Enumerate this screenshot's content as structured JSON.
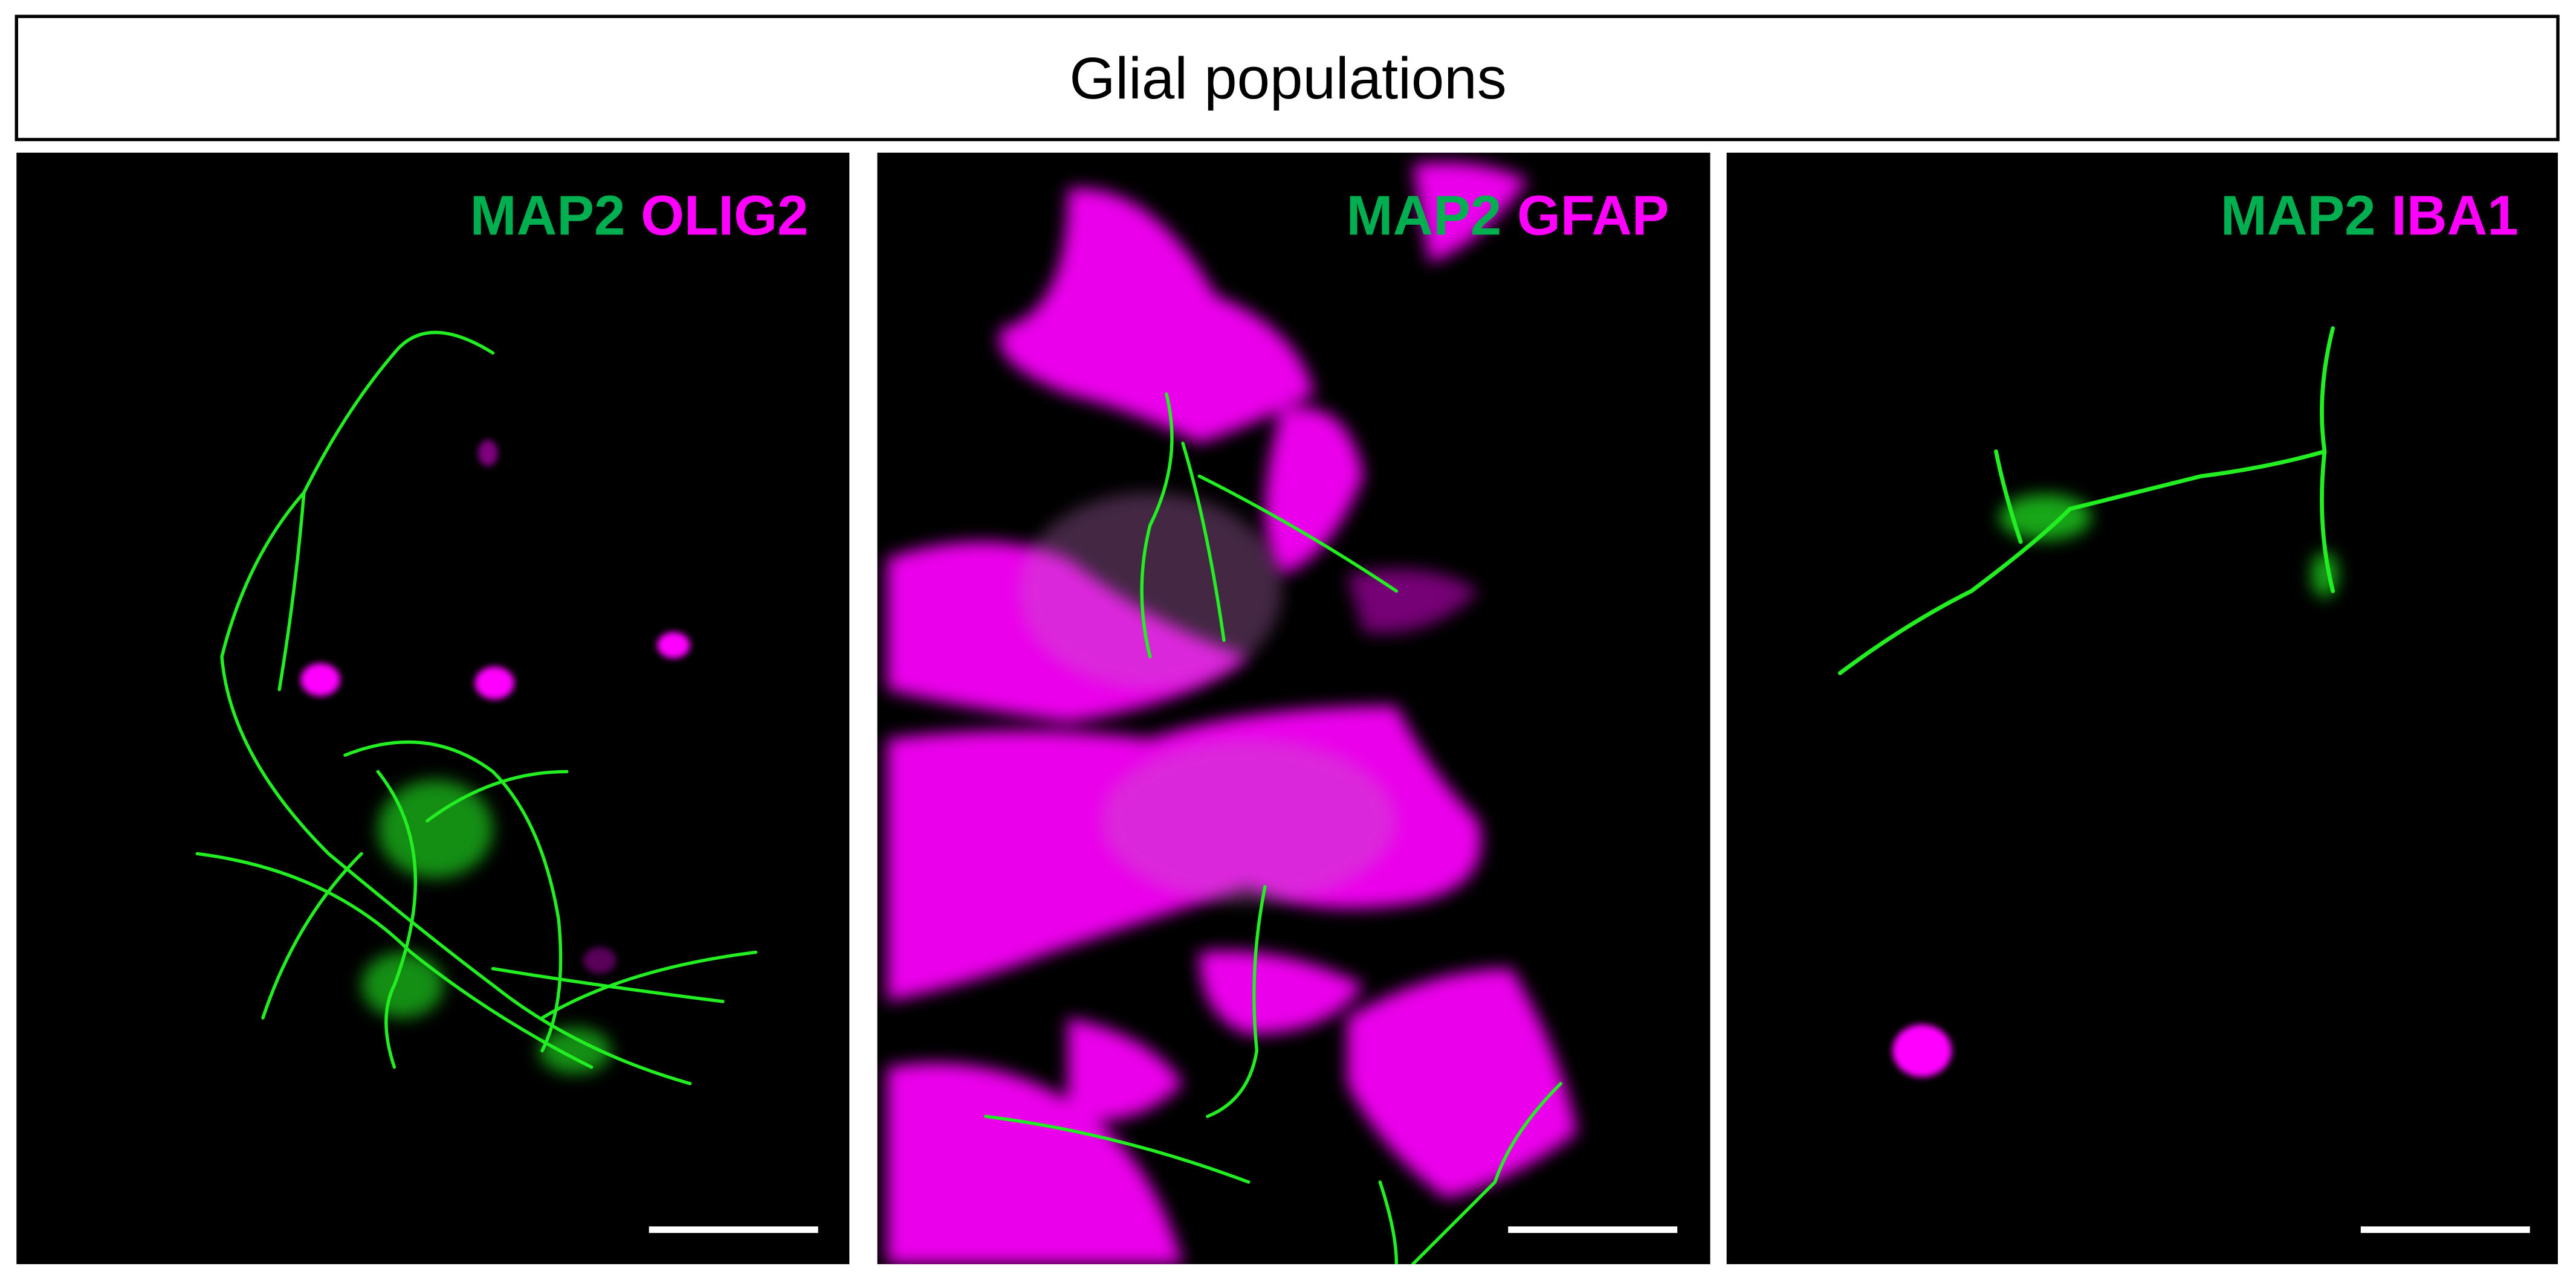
{
  "header": {
    "title": "Glial populations"
  },
  "panels": [
    {
      "marker1": "MAP2",
      "marker2": "OLIG2"
    },
    {
      "marker1": "MAP2",
      "marker2": "GFAP"
    },
    {
      "marker1": "MAP2",
      "marker2": "IBA1"
    }
  ]
}
